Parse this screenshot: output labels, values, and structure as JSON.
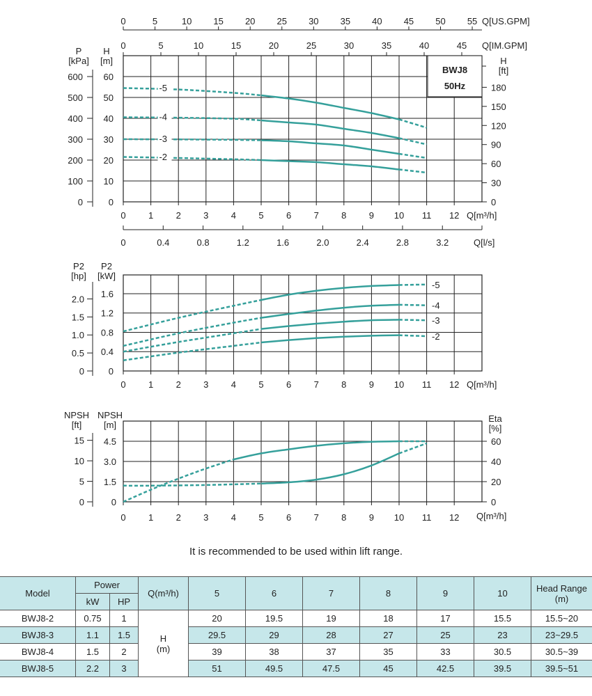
{
  "colors": {
    "curve": "#35a09b",
    "grid": "#222222",
    "table_header": "#c6e7ea"
  },
  "chart_data": [
    {
      "type": "line",
      "title": "BWJ8 50Hz",
      "title_lines": [
        "BWJ8",
        "50Hz"
      ],
      "xlabel": "Q[m³/h]",
      "ylabel_left": {
        "name": "H",
        "unit": "[m]"
      },
      "ylabel_left_outer": {
        "name": "P",
        "unit": "[kPa]"
      },
      "ylabel_right": {
        "name": "H",
        "unit": "[ft]"
      },
      "x_ticks": [
        0,
        1,
        2,
        3,
        4,
        5,
        6,
        7,
        8,
        9,
        10,
        11,
        12
      ],
      "y_ticks": [
        0,
        10,
        20,
        30,
        40,
        50,
        60
      ],
      "kpa_ticks": [
        0,
        100,
        200,
        300,
        400,
        500,
        600
      ],
      "ft_ticks": [
        0,
        30,
        60,
        90,
        120,
        150,
        180
      ],
      "us_gpm": {
        "label": "Q[US.GPM]",
        "ticks": [
          0,
          5,
          10,
          15,
          20,
          25,
          30,
          35,
          40,
          45,
          50,
          55
        ]
      },
      "im_gpm": {
        "label": "Q[IM.GPM]",
        "ticks": [
          0,
          5,
          10,
          15,
          20,
          25,
          30,
          35,
          40,
          45
        ]
      },
      "lps": {
        "label": "Q[l/s]",
        "ticks": [
          "0",
          "0.4",
          "0.8",
          "1.2",
          "1.6",
          "2.0",
          "2.4",
          "2.8",
          "3.2"
        ]
      },
      "xlim": [
        0,
        13
      ],
      "ylim": [
        0,
        70
      ],
      "solid_range": [
        5,
        10
      ],
      "series": [
        {
          "name": "-5",
          "x": [
            0,
            2,
            4,
            5,
            6,
            7,
            8,
            9,
            10,
            11
          ],
          "y": [
            54.5,
            53.8,
            52.2,
            51,
            49.5,
            47.5,
            45,
            42.5,
            39.5,
            35.5
          ]
        },
        {
          "name": "-4",
          "x": [
            0,
            2,
            4,
            5,
            6,
            7,
            8,
            9,
            10,
            11
          ],
          "y": [
            40.5,
            40.3,
            39.8,
            39,
            38,
            37,
            35,
            33,
            30.5,
            27.5
          ]
        },
        {
          "name": "-3",
          "x": [
            0,
            2,
            4,
            5,
            6,
            7,
            8,
            9,
            10,
            11
          ],
          "y": [
            30,
            29.9,
            29.7,
            29.5,
            29,
            28,
            27,
            25,
            23,
            21
          ]
        },
        {
          "name": "-2",
          "x": [
            0,
            2,
            4,
            5,
            6,
            7,
            8,
            9,
            10,
            11
          ],
          "y": [
            21.5,
            21,
            20.4,
            20,
            19.5,
            19,
            18,
            17,
            15.5,
            14
          ]
        }
      ]
    },
    {
      "type": "line",
      "xlabel": "Q[m³/h]",
      "ylabel_left": {
        "name": "P2",
        "unit": "[kW]"
      },
      "ylabel_left_outer": {
        "name": "P2",
        "unit": "[hp]"
      },
      "x_ticks": [
        0,
        1,
        2,
        3,
        4,
        5,
        6,
        7,
        8,
        9,
        10,
        11,
        12
      ],
      "y_ticks": [
        "0",
        "0.4",
        "0.8",
        "1.2",
        "1.6"
      ],
      "hp_ticks": [
        "0",
        "0.5",
        "1.0",
        "1.5",
        "2.0"
      ],
      "xlim": [
        0,
        13
      ],
      "ylim": [
        0,
        2.0
      ],
      "solid_range": [
        5,
        10
      ],
      "series": [
        {
          "name": "-5",
          "x": [
            0,
            2,
            4,
            5,
            6,
            7,
            8,
            9,
            10,
            11
          ],
          "y": [
            0.82,
            1.1,
            1.35,
            1.47,
            1.58,
            1.66,
            1.72,
            1.76,
            1.78,
            1.79
          ]
        },
        {
          "name": "-4",
          "x": [
            0,
            2,
            4,
            5,
            6,
            7,
            8,
            9,
            10,
            11
          ],
          "y": [
            0.52,
            0.78,
            1.0,
            1.1,
            1.18,
            1.25,
            1.31,
            1.35,
            1.37,
            1.36
          ]
        },
        {
          "name": "-3",
          "x": [
            0,
            2,
            4,
            5,
            6,
            7,
            8,
            9,
            10,
            11
          ],
          "y": [
            0.4,
            0.6,
            0.78,
            0.87,
            0.93,
            0.98,
            1.02,
            1.05,
            1.06,
            1.05
          ]
        },
        {
          "name": "-2",
          "x": [
            0,
            2,
            4,
            5,
            6,
            7,
            8,
            9,
            10,
            11
          ],
          "y": [
            0.22,
            0.38,
            0.52,
            0.59,
            0.64,
            0.68,
            0.71,
            0.73,
            0.74,
            0.72
          ]
        }
      ]
    },
    {
      "type": "line",
      "xlabel": "Q[m³/h]",
      "ylabel_left": {
        "name": "NPSH",
        "unit": "[m]"
      },
      "ylabel_left_outer": {
        "name": "NPSH",
        "unit": "[ft]"
      },
      "ylabel_right": {
        "name": "Eta",
        "unit": "[%]"
      },
      "x_ticks": [
        0,
        1,
        2,
        3,
        4,
        5,
        6,
        7,
        8,
        9,
        10,
        11,
        12
      ],
      "y_ticks": [
        "0",
        "1.5",
        "3.0",
        "4.5"
      ],
      "ft_ticks": [
        "0",
        "5",
        "10",
        "15"
      ],
      "eta_ticks": [
        "0",
        "20",
        "40",
        "60"
      ],
      "xlim": [
        0,
        13
      ],
      "ylim": [
        0,
        6
      ],
      "series": [
        {
          "name": "NPSH",
          "axis": "m",
          "solid_range": [
            5,
            10
          ],
          "x": [
            0,
            1,
            2,
            3,
            4,
            5,
            6,
            7,
            8,
            9,
            10,
            11
          ],
          "y": [
            1.2,
            1.2,
            1.22,
            1.25,
            1.3,
            1.36,
            1.45,
            1.65,
            2.05,
            2.7,
            3.6,
            4.35
          ]
        },
        {
          "name": "Eta",
          "axis": "percent",
          "solid_range": [
            4,
            10
          ],
          "x": [
            0,
            1,
            2,
            3,
            4,
            5,
            6,
            7,
            8,
            9,
            10,
            11
          ],
          "y": [
            0,
            12,
            23,
            33,
            42,
            48,
            52,
            55.5,
            58,
            59.5,
            60,
            60
          ]
        }
      ]
    }
  ],
  "caption": "It is recommended to be used within lift range.",
  "table": {
    "headers": {
      "model": "Model",
      "power": "Power",
      "kw": "kW",
      "hp": "HP",
      "q": "Q(m³/h)",
      "flows": [
        "5",
        "6",
        "7",
        "8",
        "9",
        "10"
      ],
      "range": "Head Range",
      "range_unit": "(m)"
    },
    "h_label": "H",
    "h_unit": "(m)",
    "rows": [
      {
        "model": "BWJ8-2",
        "kw": "0.75",
        "hp": "1",
        "h": [
          "20",
          "19.5",
          "19",
          "18",
          "17",
          "15.5"
        ],
        "range": "15.5~20"
      },
      {
        "model": "BWJ8-3",
        "kw": "1.1",
        "hp": "1.5",
        "h": [
          "29.5",
          "29",
          "28",
          "27",
          "25",
          "23"
        ],
        "range": "23~29.5"
      },
      {
        "model": "BWJ8-4",
        "kw": "1.5",
        "hp": "2",
        "h": [
          "39",
          "38",
          "37",
          "35",
          "33",
          "30.5"
        ],
        "range": "30.5~39"
      },
      {
        "model": "BWJ8-5",
        "kw": "2.2",
        "hp": "3",
        "h": [
          "51",
          "49.5",
          "47.5",
          "45",
          "42.5",
          "39.5"
        ],
        "range": "39.5~51"
      }
    ]
  }
}
